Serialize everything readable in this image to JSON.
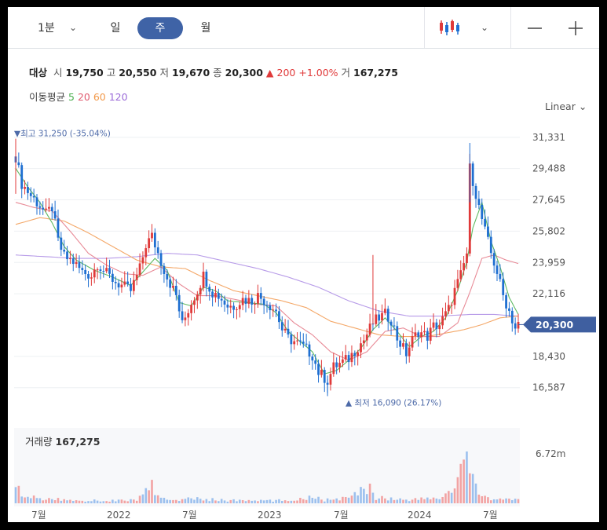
{
  "toolbar": {
    "period_label": "1분",
    "day_label": "일",
    "week_label": "주",
    "month_label": "월",
    "icons": [
      "chevron-down-icon",
      "candlestick-icon",
      "minus-icon",
      "plus-icon"
    ]
  },
  "info": {
    "target_label": "대상",
    "open_label": "시",
    "open_value": "19,750",
    "high_label": "고",
    "high_value": "20,550",
    "low_label": "저",
    "low_value": "19,670",
    "close_label": "종",
    "close_value": "20,300",
    "change_value": "▲ 200",
    "change_pct": "+1.00%",
    "volume_label": "거",
    "volume_value": "167,275"
  },
  "ma": {
    "label": "이동평균",
    "items": [
      {
        "period": "5",
        "color": "#4caf50"
      },
      {
        "period": "20",
        "color": "#e05b6f"
      },
      {
        "period": "60",
        "color": "#f2994a"
      },
      {
        "period": "120",
        "color": "#9b6bd8"
      }
    ]
  },
  "scale_label": "Linear",
  "colors": {
    "up": "#e03a3a",
    "down": "#1f6fd1",
    "badge": "#3f5fa0"
  },
  "chart_data": {
    "type": "candlestick",
    "interval": "weekly",
    "y_ticks": [
      31331,
      29488,
      27645,
      25802,
      23959,
      22116,
      18430,
      16587
    ],
    "y_tick_labels": [
      "31,331",
      "29,488",
      "27,645",
      "25,802",
      "23,959",
      "22,116",
      "18,430",
      "16,587"
    ],
    "y_range": [
      15650,
      31600
    ],
    "x_labels": [
      "7월",
      "2022",
      "7월",
      "2023",
      "7월",
      "2024",
      "7월"
    ],
    "current_price_label": "20,300",
    "current_price": 20300,
    "max_annotation": "▼최고 31,250 (-35.04%)",
    "min_annotation": "▲ 최저 16,090 (26.17%)",
    "volume_title": "거래량",
    "volume_value": "167,275",
    "volume_tick_label": "6.72m",
    "volume_tick": 6720000,
    "close_path": [
      [
        0,
        30200
      ],
      [
        2,
        28600
      ],
      [
        5,
        27900
      ],
      [
        8,
        27300
      ],
      [
        10,
        26800
      ],
      [
        12,
        27200
      ],
      [
        14,
        25200
      ],
      [
        16,
        24300
      ],
      [
        19,
        24000
      ],
      [
        22,
        23400
      ],
      [
        25,
        23200
      ],
      [
        27,
        23900
      ],
      [
        30,
        23300
      ],
      [
        33,
        22800
      ],
      [
        36,
        22500
      ],
      [
        38,
        22300
      ],
      [
        41,
        23600
      ],
      [
        43,
        25000
      ],
      [
        45,
        25500
      ],
      [
        48,
        24000
      ],
      [
        50,
        23100
      ],
      [
        53,
        22000
      ],
      [
        55,
        20300
      ],
      [
        58,
        21600
      ],
      [
        60,
        22300
      ],
      [
        62,
        23200
      ],
      [
        65,
        22200
      ],
      [
        67,
        22000
      ],
      [
        70,
        21400
      ],
      [
        72,
        21400
      ],
      [
        75,
        21800
      ],
      [
        78,
        21700
      ],
      [
        80,
        22000
      ],
      [
        83,
        21600
      ],
      [
        86,
        21100
      ],
      [
        88,
        20000
      ],
      [
        90,
        19500
      ],
      [
        93,
        19200
      ],
      [
        95,
        19000
      ],
      [
        98,
        18500
      ],
      [
        100,
        17500
      ],
      [
        103,
        17000
      ],
      [
        105,
        17800
      ],
      [
        108,
        18100
      ],
      [
        110,
        18300
      ],
      [
        113,
        19000
      ],
      [
        115,
        19400
      ],
      [
        118,
        20400
      ],
      [
        120,
        20700
      ],
      [
        122,
        20900
      ],
      [
        124,
        20600
      ],
      [
        126,
        19500
      ],
      [
        129,
        18600
      ],
      [
        131,
        19400
      ],
      [
        133,
        19900
      ],
      [
        136,
        19600
      ],
      [
        138,
        20200
      ],
      [
        140,
        20300
      ],
      [
        143,
        21200
      ],
      [
        145,
        22300
      ],
      [
        147,
        23200
      ],
      [
        149,
        24500
      ],
      [
        150,
        29500
      ],
      [
        151,
        28800
      ],
      [
        153,
        27200
      ],
      [
        155,
        25800
      ],
      [
        157,
        24500
      ],
      [
        159,
        23400
      ],
      [
        161,
        22000
      ],
      [
        163,
        21100
      ],
      [
        165,
        20100
      ],
      [
        166,
        20300
      ]
    ],
    "ma5_path": [
      [
        0,
        29500
      ],
      [
        4,
        28400
      ],
      [
        8,
        27500
      ],
      [
        12,
        26300
      ],
      [
        16,
        24900
      ],
      [
        20,
        24100
      ],
      [
        26,
        23500
      ],
      [
        32,
        23100
      ],
      [
        38,
        22600
      ],
      [
        42,
        23400
      ],
      [
        46,
        24200
      ],
      [
        50,
        23500
      ],
      [
        54,
        21600
      ],
      [
        58,
        21400
      ],
      [
        62,
        22500
      ],
      [
        66,
        22300
      ],
      [
        70,
        21700
      ],
      [
        76,
        21600
      ],
      [
        82,
        21500
      ],
      [
        86,
        21000
      ],
      [
        90,
        19900
      ],
      [
        94,
        19300
      ],
      [
        98,
        18700
      ],
      [
        102,
        17400
      ],
      [
        106,
        17600
      ],
      [
        110,
        18200
      ],
      [
        114,
        18900
      ],
      [
        118,
        20000
      ],
      [
        122,
        20700
      ],
      [
        126,
        19900
      ],
      [
        130,
        19000
      ],
      [
        134,
        19600
      ],
      [
        138,
        19900
      ],
      [
        142,
        20700
      ],
      [
        146,
        22300
      ],
      [
        149,
        24000
      ],
      [
        151,
        26000
      ],
      [
        154,
        27500
      ],
      [
        157,
        25200
      ],
      [
        160,
        23700
      ],
      [
        163,
        21900
      ],
      [
        166,
        20900
      ]
    ],
    "ma20_path": [
      [
        0,
        27500
      ],
      [
        6,
        27200
      ],
      [
        12,
        27000
      ],
      [
        18,
        25800
      ],
      [
        24,
        24500
      ],
      [
        30,
        23800
      ],
      [
        36,
        23300
      ],
      [
        42,
        23200
      ],
      [
        48,
        23700
      ],
      [
        54,
        22700
      ],
      [
        60,
        22000
      ],
      [
        66,
        22000
      ],
      [
        72,
        21800
      ],
      [
        80,
        21500
      ],
      [
        86,
        21400
      ],
      [
        92,
        20400
      ],
      [
        98,
        19700
      ],
      [
        104,
        18700
      ],
      [
        110,
        18200
      ],
      [
        116,
        18700
      ],
      [
        122,
        19900
      ],
      [
        128,
        20100
      ],
      [
        134,
        19600
      ],
      [
        140,
        19600
      ],
      [
        146,
        20400
      ],
      [
        150,
        22200
      ],
      [
        154,
        24200
      ],
      [
        158,
        24400
      ],
      [
        162,
        24100
      ],
      [
        166,
        23900
      ]
    ],
    "ma60_path": [
      [
        0,
        26200
      ],
      [
        8,
        26600
      ],
      [
        16,
        26400
      ],
      [
        24,
        25700
      ],
      [
        32,
        24900
      ],
      [
        40,
        24100
      ],
      [
        48,
        23700
      ],
      [
        56,
        23600
      ],
      [
        64,
        22900
      ],
      [
        72,
        22300
      ],
      [
        80,
        22000
      ],
      [
        88,
        21700
      ],
      [
        96,
        21300
      ],
      [
        104,
        20500
      ],
      [
        112,
        20100
      ],
      [
        120,
        19700
      ],
      [
        128,
        19600
      ],
      [
        136,
        19600
      ],
      [
        142,
        19800
      ],
      [
        148,
        20000
      ],
      [
        154,
        20300
      ],
      [
        160,
        20700
      ],
      [
        166,
        20800
      ]
    ],
    "ma120_path": [
      [
        0,
        24400
      ],
      [
        10,
        24300
      ],
      [
        20,
        24200
      ],
      [
        30,
        24200
      ],
      [
        40,
        24300
      ],
      [
        50,
        24500
      ],
      [
        60,
        24400
      ],
      [
        70,
        24000
      ],
      [
        80,
        23600
      ],
      [
        90,
        23100
      ],
      [
        100,
        22500
      ],
      [
        110,
        21700
      ],
      [
        120,
        21100
      ],
      [
        130,
        20800
      ],
      [
        140,
        20800
      ],
      [
        150,
        20900
      ],
      [
        158,
        20900
      ],
      [
        166,
        20800
      ]
    ],
    "volume_path": [
      [
        0,
        4000000
      ],
      [
        1,
        2000000
      ],
      [
        2,
        700000
      ],
      [
        5,
        800000
      ],
      [
        10,
        600000
      ],
      [
        15,
        500000
      ],
      [
        20,
        400000
      ],
      [
        30,
        350000
      ],
      [
        40,
        450000
      ],
      [
        45,
        2500000
      ],
      [
        46,
        900000
      ],
      [
        50,
        500000
      ],
      [
        60,
        600000
      ],
      [
        70,
        400000
      ],
      [
        80,
        350000
      ],
      [
        90,
        400000
      ],
      [
        100,
        1000000
      ],
      [
        101,
        400000
      ],
      [
        110,
        700000
      ],
      [
        118,
        2500000
      ],
      [
        119,
        800000
      ],
      [
        125,
        600000
      ],
      [
        130,
        500000
      ],
      [
        140,
        700000
      ],
      [
        145,
        2000000
      ],
      [
        148,
        5500000
      ],
      [
        150,
        4500000
      ],
      [
        151,
        3000000
      ],
      [
        153,
        1500000
      ],
      [
        155,
        800000
      ],
      [
        160,
        600000
      ],
      [
        166,
        400000
      ]
    ]
  }
}
